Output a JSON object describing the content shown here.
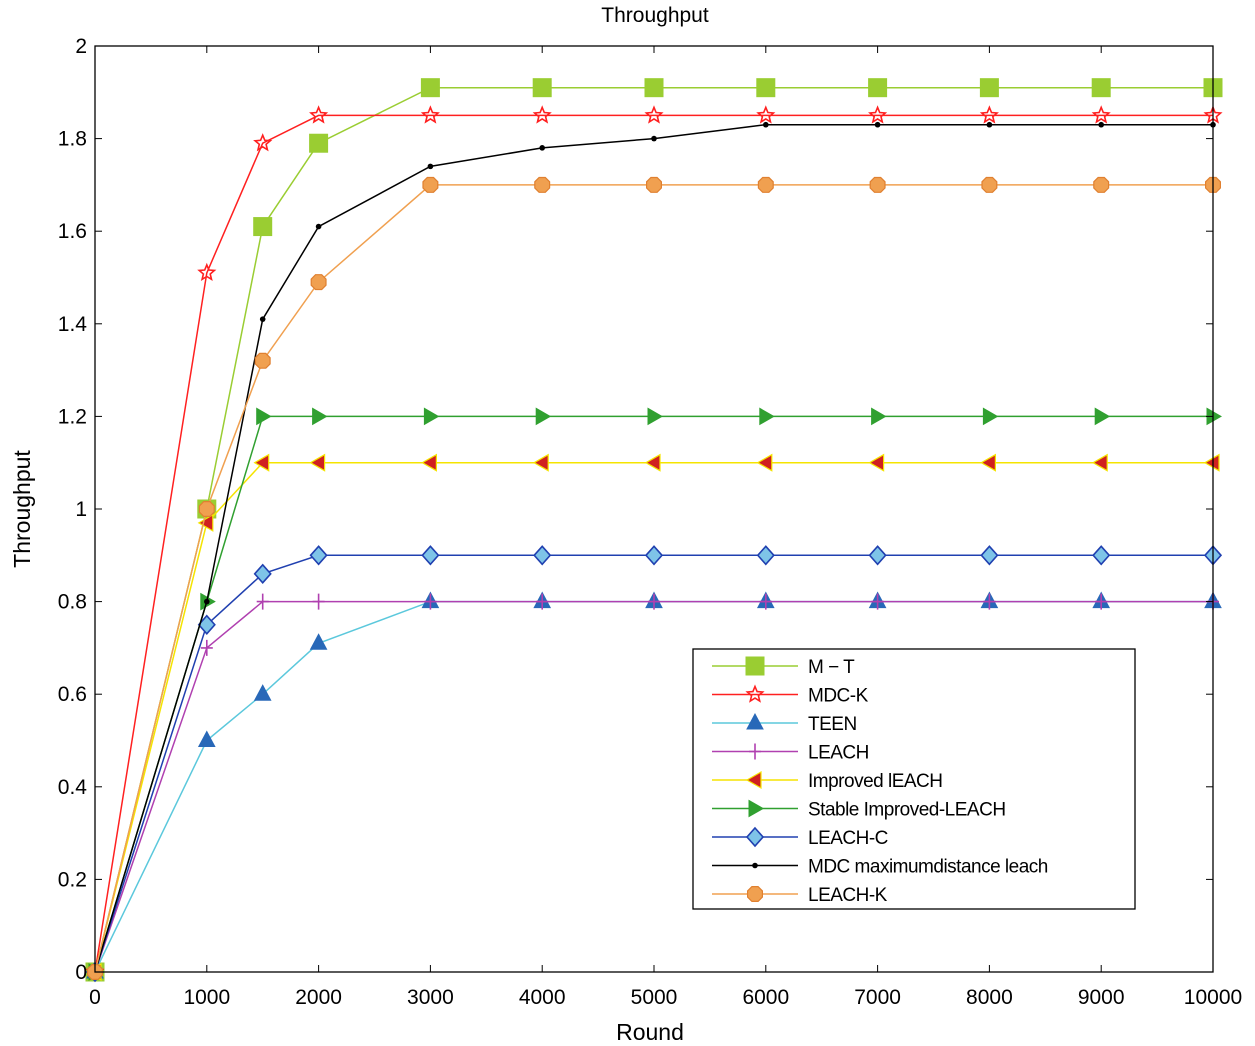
{
  "chart_data": {
    "type": "line",
    "title": "Throughput",
    "xlabel": "Round",
    "ylabel": "Throughput",
    "xlim": [
      0,
      10000
    ],
    "ylim": [
      0,
      2
    ],
    "grid": false,
    "legend_position": "bottom-right",
    "x_ticks": [
      "0",
      "1000",
      "2000",
      "3000",
      "4000",
      "5000",
      "6000",
      "7000",
      "8000",
      "9000",
      "10000"
    ],
    "y_ticks": [
      "0",
      "0.2",
      "0.4",
      "0.6",
      "0.8",
      "1",
      "1.2",
      "1.4",
      "1.6",
      "1.8",
      "2"
    ],
    "x": [
      0,
      1000,
      1500,
      2000,
      3000,
      4000,
      5000,
      6000,
      7000,
      8000,
      9000,
      10000
    ],
    "series": [
      {
        "name": "M − T",
        "color": "#9ACD32",
        "marker": "square",
        "values": [
          0,
          1.0,
          1.61,
          1.79,
          1.91,
          1.91,
          1.91,
          1.91,
          1.91,
          1.91,
          1.91,
          1.91
        ]
      },
      {
        "name": "MDC-K",
        "color": "#FF2020",
        "marker": "star",
        "values": [
          0,
          1.51,
          1.79,
          1.85,
          1.85,
          1.85,
          1.85,
          1.85,
          1.85,
          1.85,
          1.85,
          1.85
        ]
      },
      {
        "name": "TEEN",
        "color": "#5BC8DC",
        "marker": "triangle-up",
        "values": [
          0,
          0.5,
          0.6,
          0.71,
          0.8,
          0.8,
          0.8,
          0.8,
          0.8,
          0.8,
          0.8,
          0.8
        ]
      },
      {
        "name": "LEACH",
        "color": "#B040B0",
        "marker": "plus",
        "values": [
          0,
          0.7,
          0.8,
          0.8,
          0.8,
          0.8,
          0.8,
          0.8,
          0.8,
          0.8,
          0.8,
          0.8
        ]
      },
      {
        "name": "Improved lEACH",
        "color": "#F5E400",
        "marker": "triangle-left",
        "values": [
          0,
          0.97,
          1.1,
          1.1,
          1.1,
          1.1,
          1.1,
          1.1,
          1.1,
          1.1,
          1.1,
          1.1
        ]
      },
      {
        "name": "Stable Improved-LEACH",
        "color": "#30A030",
        "marker": "triangle-right",
        "values": [
          0,
          0.8,
          1.2,
          1.2,
          1.2,
          1.2,
          1.2,
          1.2,
          1.2,
          1.2,
          1.2,
          1.2
        ]
      },
      {
        "name": "LEACH-C",
        "color": "#2040B0",
        "marker": "diamond",
        "values": [
          0,
          0.75,
          0.86,
          0.9,
          0.9,
          0.9,
          0.9,
          0.9,
          0.9,
          0.9,
          0.9,
          0.9
        ]
      },
      {
        "name": "MDC maximumdistance leach",
        "color": "#000000",
        "marker": "dot",
        "values": [
          0,
          0.8,
          1.41,
          1.61,
          1.74,
          1.78,
          1.8,
          1.83,
          1.83,
          1.83,
          1.83,
          1.83
        ]
      },
      {
        "name": "LEACH-K",
        "color": "#F0A050",
        "marker": "hexagon",
        "values": [
          0,
          1.0,
          1.32,
          1.49,
          1.7,
          1.7,
          1.7,
          1.7,
          1.7,
          1.7,
          1.7,
          1.7
        ]
      }
    ]
  }
}
